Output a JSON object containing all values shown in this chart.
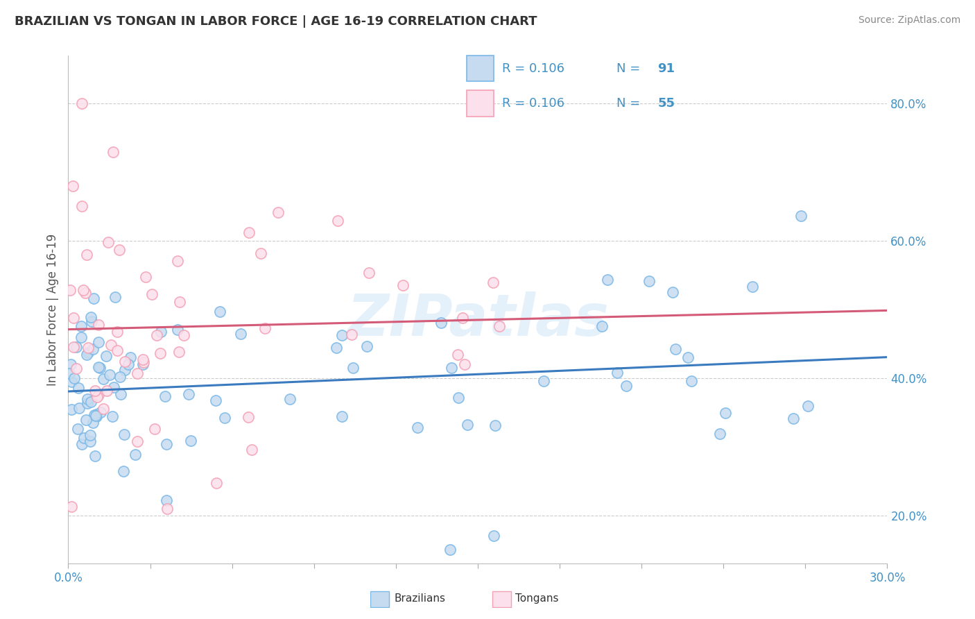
{
  "title": "BRAZILIAN VS TONGAN IN LABOR FORCE | AGE 16-19 CORRELATION CHART",
  "source": "Source: ZipAtlas.com",
  "ylabel_label": "In Labor Force | Age 16-19",
  "xlim": [
    0.0,
    30.0
  ],
  "ylim": [
    13.0,
    87.0
  ],
  "yticks": [
    20.0,
    40.0,
    60.0,
    80.0
  ],
  "R_brazilian": 0.106,
  "N_brazilian": 91,
  "R_tongan": 0.106,
  "N_tongan": 55,
  "blue_edge": "#7ab8e8",
  "blue_face": "#c6dbef",
  "pink_edge": "#f4a0b5",
  "pink_face": "#fce0ec",
  "trend_blue": "#3a7bbf",
  "trend_pink": "#d45b78",
  "title_color": "#333333",
  "axis_label_color": "#4292c6",
  "watermark": "ZIPatlas",
  "background_color": "#ffffff",
  "grid_color": "#cccccc"
}
